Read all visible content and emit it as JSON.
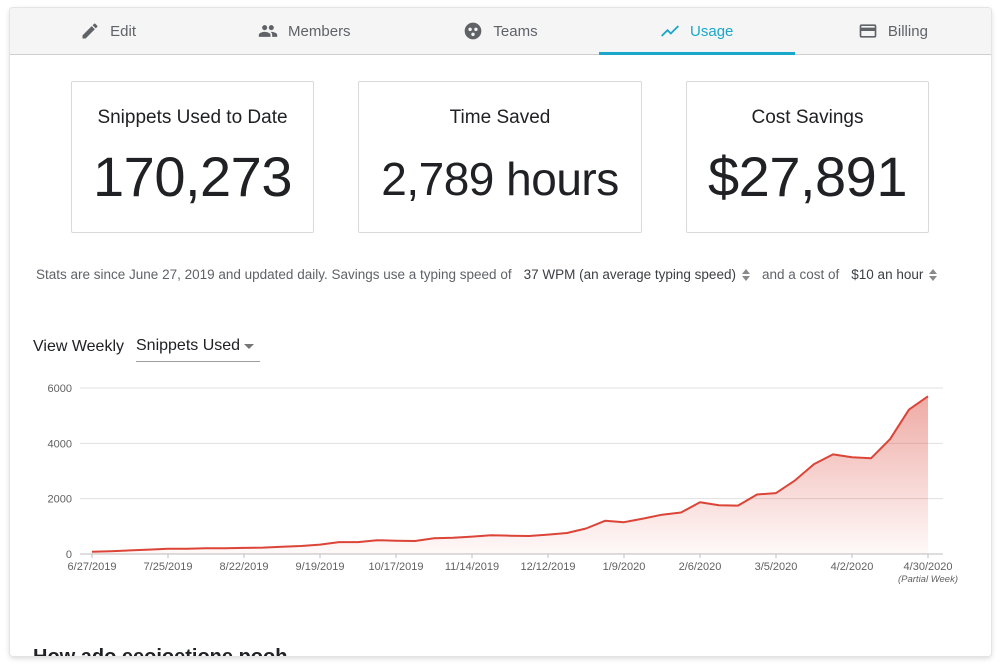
{
  "tabs": [
    {
      "label": "Edit",
      "icon": "pencil-icon"
    },
    {
      "label": "Members",
      "icon": "people-icon"
    },
    {
      "label": "Teams",
      "icon": "teams-icon"
    },
    {
      "label": "Usage",
      "icon": "trend-icon",
      "active": true
    },
    {
      "label": "Billing",
      "icon": "credit-card-icon"
    }
  ],
  "stats": {
    "snippets": {
      "label": "Snippets Used to Date",
      "value": "170,273"
    },
    "time": {
      "label": "Time Saved",
      "value": "2,789 hours"
    },
    "cost": {
      "label": "Cost Savings",
      "value": "$27,891"
    }
  },
  "statsline": {
    "text": "Stats are since June 27, 2019 and updated daily. Savings use a typing speed of",
    "typing_speed": "37 WPM (an average typing speed)",
    "cost_text": "and a cost of",
    "cost_value": "$10 an hour"
  },
  "view": {
    "label": "View Weekly",
    "metric": "Snippets Used"
  },
  "chart_data": {
    "type": "area",
    "title": "",
    "xlabel": "",
    "ylabel": "",
    "ylim": [
      0,
      6000
    ],
    "yticks": [
      0,
      2000,
      4000,
      6000
    ],
    "xtick_labels": [
      "6/27/2019",
      "7/25/2019",
      "8/22/2019",
      "9/19/2019",
      "10/17/2019",
      "11/14/2019",
      "12/12/2019",
      "1/9/2020",
      "2/6/2020",
      "3/5/2020",
      "4/2/2020",
      "4/30/2020"
    ],
    "xtick_note": "(Partial Week)",
    "line_color": "#db4437",
    "fill_color": "#db4437",
    "grid": true,
    "values": [
      80,
      100,
      130,
      160,
      190,
      190,
      210,
      210,
      220,
      230,
      260,
      290,
      340,
      430,
      430,
      500,
      480,
      470,
      570,
      590,
      630,
      680,
      660,
      650,
      700,
      760,
      920,
      1200,
      1150,
      1280,
      1420,
      1500,
      1870,
      1760,
      1750,
      2150,
      2200,
      2660,
      3250,
      3600,
      3500,
      3460,
      4150,
      5220,
      5700
    ]
  },
  "bottom_heading": "How ado eeojoetione pooh"
}
